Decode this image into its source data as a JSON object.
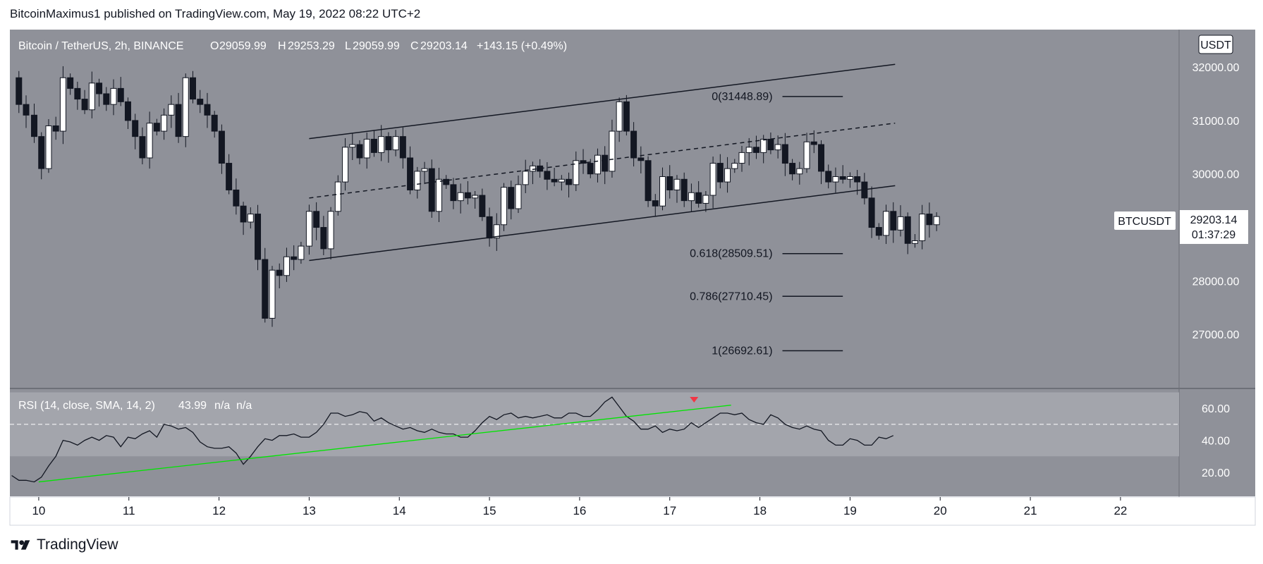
{
  "header": {
    "publish_line": "BitcoinMaximus1 published on TradingView.com, May 19, 2022 08:22 UTC+2"
  },
  "footer": {
    "brand": "TradingView"
  },
  "colors": {
    "price_pane_bg": "#8f9199",
    "rsi_pane_bg": "#8f9199",
    "rsi_band": "#a2a4ab",
    "bull_candle": "#ffffff",
    "bear_candle": "#131722",
    "trendline": "#00e600",
    "signal_marker": "#f23645"
  },
  "chart_data": [
    {
      "type": "candlestick",
      "symbol_legend": {
        "name": "Bitcoin / TetherUS, 2h, BINANCE",
        "o_label": "O",
        "o": "29059.99",
        "h_label": "H",
        "h": "29253.29",
        "l_label": "L",
        "l": "29059.99",
        "c_label": "C",
        "c": "29203.14",
        "change": "+143.15 (+0.49%)"
      },
      "currency_label": "USDT",
      "symbol_tag": "BTCUSDT",
      "last_price": "29203.14",
      "countdown": "01:37:29",
      "y_ticks": [
        "32000.00",
        "31000.00",
        "30000.00",
        "28000.00",
        "27000.00"
      ],
      "y_tick_values": [
        32000,
        31000,
        30000,
        28000,
        27000
      ],
      "x_ticks": [
        "10",
        "11",
        "12",
        "13",
        "14",
        "15",
        "16",
        "17",
        "18",
        "19",
        "20",
        "21",
        "22"
      ],
      "x_tick_values": [
        10,
        11,
        12,
        13,
        14,
        15,
        16,
        17,
        18,
        19,
        20,
        21,
        22
      ],
      "xlim": [
        9.68,
        22.65
      ],
      "ylim": [
        26000,
        32700
      ],
      "grid": false,
      "series_close": [
        [
          9.7,
          31800
        ],
        [
          9.78,
          31300
        ],
        [
          9.86,
          31100
        ],
        [
          9.95,
          30700
        ],
        [
          10.03,
          30100
        ],
        [
          10.11,
          30900
        ],
        [
          10.19,
          30800
        ],
        [
          10.27,
          31800
        ],
        [
          10.35,
          31600
        ],
        [
          10.43,
          31400
        ],
        [
          10.51,
          31200
        ],
        [
          10.59,
          31700
        ],
        [
          10.67,
          31500
        ],
        [
          10.75,
          31300
        ],
        [
          10.83,
          31600
        ],
        [
          10.91,
          31350
        ],
        [
          10.99,
          31000
        ],
        [
          11.07,
          30700
        ],
        [
          11.15,
          30300
        ],
        [
          11.23,
          30950
        ],
        [
          11.31,
          30800
        ],
        [
          11.39,
          31100
        ],
        [
          11.47,
          31300
        ],
        [
          11.55,
          30700
        ],
        [
          11.63,
          31800
        ],
        [
          11.71,
          31400
        ],
        [
          11.79,
          31300
        ],
        [
          11.87,
          31100
        ],
        [
          11.95,
          30800
        ],
        [
          12.03,
          30200
        ],
        [
          12.11,
          29700
        ],
        [
          12.19,
          29400
        ],
        [
          12.27,
          29100
        ],
        [
          12.35,
          29250
        ],
        [
          12.43,
          28400
        ],
        [
          12.51,
          27300
        ],
        [
          12.59,
          28200
        ],
        [
          12.67,
          28100
        ],
        [
          12.75,
          28450
        ],
        [
          12.83,
          28400
        ],
        [
          12.91,
          28650
        ],
        [
          13.0,
          29300
        ],
        [
          13.08,
          29000
        ],
        [
          13.16,
          28600
        ],
        [
          13.24,
          29300
        ],
        [
          13.32,
          29850
        ],
        [
          13.4,
          30500
        ],
        [
          13.48,
          30550
        ],
        [
          13.56,
          30300
        ],
        [
          13.64,
          30650
        ],
        [
          13.72,
          30400
        ],
        [
          13.8,
          30700
        ],
        [
          13.88,
          30450
        ],
        [
          13.96,
          30700
        ],
        [
          14.04,
          30300
        ],
        [
          14.12,
          29700
        ],
        [
          14.2,
          30050
        ],
        [
          14.28,
          30100
        ],
        [
          14.36,
          29300
        ],
        [
          14.44,
          29900
        ],
        [
          14.52,
          29800
        ],
        [
          14.6,
          29500
        ],
        [
          14.68,
          29650
        ],
        [
          14.76,
          29550
        ],
        [
          14.84,
          29600
        ],
        [
          14.92,
          29200
        ],
        [
          15.0,
          28800
        ],
        [
          15.08,
          29050
        ],
        [
          15.16,
          29750
        ],
        [
          15.24,
          29350
        ],
        [
          15.32,
          29800
        ],
        [
          15.4,
          30050
        ],
        [
          15.48,
          30150
        ],
        [
          15.56,
          30050
        ],
        [
          15.64,
          29900
        ],
        [
          15.72,
          29850
        ],
        [
          15.8,
          29900
        ],
        [
          15.88,
          29800
        ],
        [
          15.96,
          30250
        ],
        [
          16.04,
          30200
        ],
        [
          16.12,
          30000
        ],
        [
          16.2,
          30350
        ],
        [
          16.28,
          30050
        ],
        [
          16.36,
          30800
        ],
        [
          16.44,
          31350
        ],
        [
          16.52,
          30800
        ],
        [
          16.6,
          30300
        ],
        [
          16.68,
          30250
        ],
        [
          16.76,
          29500
        ],
        [
          16.84,
          29400
        ],
        [
          16.92,
          29950
        ],
        [
          17.0,
          29700
        ],
        [
          17.08,
          29900
        ],
        [
          17.16,
          29500
        ],
        [
          17.24,
          29650
        ],
        [
          17.32,
          29450
        ],
        [
          17.4,
          29600
        ],
        [
          17.48,
          30200
        ],
        [
          17.56,
          29850
        ],
        [
          17.64,
          30100
        ],
        [
          17.72,
          30200
        ],
        [
          17.8,
          30400
        ],
        [
          17.88,
          30500
        ],
        [
          17.96,
          30400
        ],
        [
          18.04,
          30650
        ],
        [
          18.12,
          30450
        ],
        [
          18.2,
          30550
        ],
        [
          18.28,
          30200
        ],
        [
          18.36,
          30000
        ],
        [
          18.44,
          30100
        ],
        [
          18.52,
          30600
        ],
        [
          18.6,
          30550
        ],
        [
          18.68,
          30050
        ],
        [
          18.76,
          29850
        ],
        [
          18.84,
          29950
        ],
        [
          18.92,
          29900
        ],
        [
          19.0,
          29950
        ],
        [
          19.08,
          29850
        ],
        [
          19.16,
          29550
        ],
        [
          19.24,
          29000
        ],
        [
          19.32,
          28850
        ],
        [
          19.4,
          29300
        ],
        [
          19.48,
          28950
        ],
        [
          19.56,
          29200
        ],
        [
          19.64,
          28700
        ],
        [
          19.72,
          28750
        ],
        [
          19.8,
          29250
        ],
        [
          19.88,
          29050
        ],
        [
          19.96,
          29203
        ]
      ],
      "channel_upper": [
        [
          13.0,
          30660
        ],
        [
          19.5,
          32050
        ]
      ],
      "channel_mid": [
        [
          13.0,
          29550
        ],
        [
          19.5,
          30950
        ]
      ],
      "channel_lower": [
        [
          13.0,
          28380
        ],
        [
          19.5,
          29780
        ]
      ],
      "fib_levels": [
        {
          "label": "0(31448.89)",
          "value": 31448.89
        },
        {
          "label": "0.618(28509.51)",
          "value": 28509.51
        },
        {
          "label": "0.786(27710.45)",
          "value": 27710.45
        },
        {
          "label": "1(26692.61)",
          "value": 26692.61
        }
      ],
      "fib_x_range": [
        18.25,
        18.92
      ]
    },
    {
      "type": "line",
      "legend": {
        "name": "RSI (14, close, SMA, 14, 2)",
        "value": "43.99",
        "na1": "n/a",
        "na2": "n/a"
      },
      "y_ticks": [
        "60.00",
        "40.00",
        "20.00"
      ],
      "y_tick_values": [
        60,
        40,
        20
      ],
      "ylim": [
        5,
        72
      ],
      "band": [
        30,
        70
      ],
      "midline": 50,
      "series": [
        [
          9.7,
          18
        ],
        [
          9.78,
          15
        ],
        [
          9.86,
          15
        ],
        [
          9.95,
          14
        ],
        [
          10.03,
          17
        ],
        [
          10.11,
          24
        ],
        [
          10.19,
          30
        ],
        [
          10.27,
          40
        ],
        [
          10.35,
          39
        ],
        [
          10.43,
          37
        ],
        [
          10.51,
          40
        ],
        [
          10.59,
          42
        ],
        [
          10.67,
          40
        ],
        [
          10.75,
          43
        ],
        [
          10.83,
          42
        ],
        [
          10.91,
          36
        ],
        [
          10.99,
          42
        ],
        [
          11.07,
          41
        ],
        [
          11.15,
          44
        ],
        [
          11.23,
          46
        ],
        [
          11.31,
          42
        ],
        [
          11.39,
          50
        ],
        [
          11.47,
          49
        ],
        [
          11.55,
          47
        ],
        [
          11.63,
          48
        ],
        [
          11.71,
          45
        ],
        [
          11.79,
          39
        ],
        [
          11.87,
          36
        ],
        [
          11.95,
          35
        ],
        [
          12.03,
          35
        ],
        [
          12.11,
          36
        ],
        [
          12.19,
          32
        ],
        [
          12.27,
          25
        ],
        [
          12.35,
          30
        ],
        [
          12.43,
          36
        ],
        [
          12.51,
          41
        ],
        [
          12.59,
          40
        ],
        [
          12.67,
          43
        ],
        [
          12.75,
          43
        ],
        [
          12.83,
          44
        ],
        [
          12.91,
          42
        ],
        [
          13.0,
          42
        ],
        [
          13.08,
          45
        ],
        [
          13.16,
          50
        ],
        [
          13.24,
          57
        ],
        [
          13.32,
          57
        ],
        [
          13.4,
          55
        ],
        [
          13.48,
          56
        ],
        [
          13.56,
          58
        ],
        [
          13.64,
          57
        ],
        [
          13.72,
          52
        ],
        [
          13.8,
          54
        ],
        [
          13.88,
          51
        ],
        [
          13.96,
          49
        ],
        [
          14.04,
          47
        ],
        [
          14.12,
          48
        ],
        [
          14.2,
          46
        ],
        [
          14.28,
          45
        ],
        [
          14.36,
          47
        ],
        [
          14.44,
          45
        ],
        [
          14.52,
          44
        ],
        [
          14.6,
          44
        ],
        [
          14.68,
          42
        ],
        [
          14.76,
          42
        ],
        [
          14.84,
          46
        ],
        [
          14.92,
          51
        ],
        [
          15.0,
          55
        ],
        [
          15.08,
          53
        ],
        [
          15.16,
          56
        ],
        [
          15.24,
          57
        ],
        [
          15.32,
          54
        ],
        [
          15.4,
          55
        ],
        [
          15.48,
          54
        ],
        [
          15.56,
          55
        ],
        [
          15.64,
          56
        ],
        [
          15.72,
          54
        ],
        [
          15.8,
          54
        ],
        [
          15.88,
          57
        ],
        [
          15.96,
          57
        ],
        [
          16.04,
          55
        ],
        [
          16.12,
          55
        ],
        [
          16.2,
          59
        ],
        [
          16.28,
          64
        ],
        [
          16.36,
          67
        ],
        [
          16.44,
          61
        ],
        [
          16.52,
          55
        ],
        [
          16.6,
          52
        ],
        [
          16.68,
          47
        ],
        [
          16.76,
          47
        ],
        [
          16.84,
          49
        ],
        [
          16.92,
          45
        ],
        [
          17.0,
          47
        ],
        [
          17.08,
          46
        ],
        [
          17.16,
          47
        ],
        [
          17.24,
          51
        ],
        [
          17.32,
          48
        ],
        [
          17.4,
          51
        ],
        [
          17.48,
          54
        ],
        [
          17.56,
          57
        ],
        [
          17.64,
          57
        ],
        [
          17.72,
          56
        ],
        [
          17.8,
          57
        ],
        [
          17.88,
          53
        ],
        [
          17.96,
          51
        ],
        [
          18.04,
          50
        ],
        [
          18.12,
          56
        ],
        [
          18.2,
          54
        ],
        [
          18.28,
          50
        ],
        [
          18.36,
          48
        ],
        [
          18.44,
          47
        ],
        [
          18.52,
          49
        ],
        [
          18.6,
          47
        ],
        [
          18.68,
          46
        ],
        [
          18.76,
          40
        ],
        [
          18.84,
          37
        ],
        [
          18.92,
          37
        ],
        [
          19.0,
          41
        ],
        [
          19.08,
          40
        ],
        [
          19.16,
          37
        ],
        [
          19.24,
          37
        ],
        [
          19.32,
          42
        ],
        [
          19.4,
          41
        ],
        [
          19.48,
          43
        ]
      ],
      "trendline": [
        [
          10.0,
          14
        ],
        [
          17.68,
          62
        ]
      ],
      "signal_marker_x": 17.27
    }
  ]
}
